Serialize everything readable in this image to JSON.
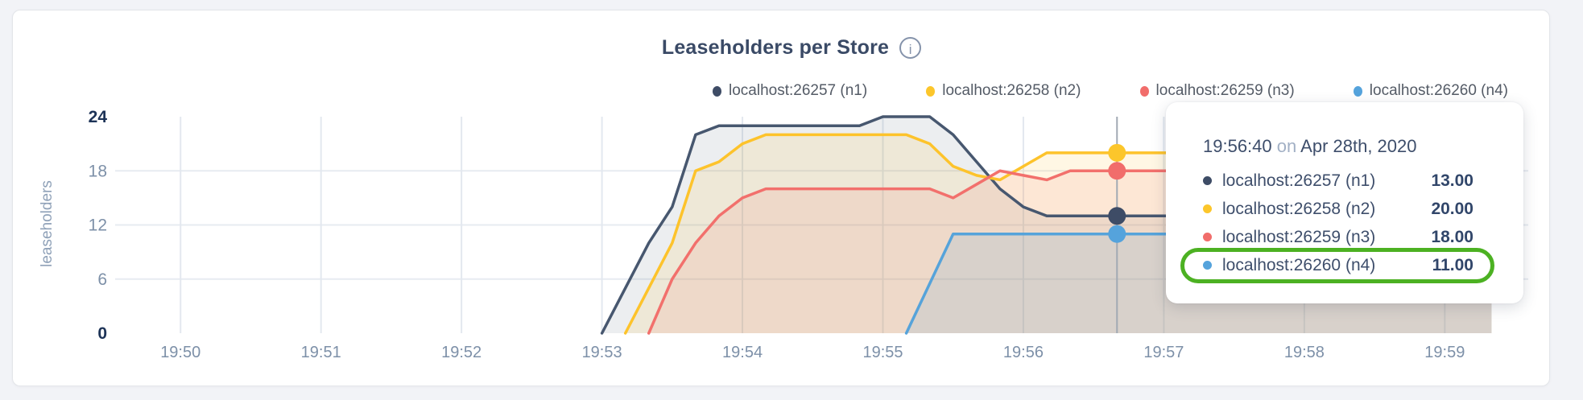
{
  "chart_data": {
    "type": "area",
    "title": "Leaseholders per Store",
    "info_icon": "i",
    "ylabel": "leaseholders",
    "xlabel": "",
    "grid": true,
    "legend_position": "top-right",
    "ylim": [
      0,
      24
    ],
    "y_ticks": [
      0,
      6,
      12,
      18,
      24
    ],
    "y_bold_ticks": [
      0,
      24
    ],
    "x_tick_labels": [
      "19:50",
      "19:51",
      "19:52",
      "19:53",
      "19:54",
      "19:55",
      "19:56",
      "19:57",
      "19:58",
      "19:59"
    ],
    "x_tick_seconds": [
      0,
      60,
      120,
      180,
      240,
      300,
      360,
      420,
      480,
      540
    ],
    "x_range_seconds": [
      -30,
      576
    ],
    "time_unit": "seconds after 19:50:00 on Apr 28th, 2020",
    "series": [
      {
        "name": "localhost:26257 (n1)",
        "color": "#47576F",
        "dot_color": "#3E4C66",
        "fill_opacity": 0.1,
        "points_s_v": [
          [
            180,
            0
          ],
          [
            190,
            5
          ],
          [
            200,
            10
          ],
          [
            210,
            14
          ],
          [
            220,
            22
          ],
          [
            230,
            23
          ],
          [
            290,
            23
          ],
          [
            300,
            24
          ],
          [
            320,
            24
          ],
          [
            330,
            22
          ],
          [
            340,
            19
          ],
          [
            350,
            16
          ],
          [
            360,
            14
          ],
          [
            370,
            13
          ],
          [
            560,
            13
          ]
        ]
      },
      {
        "name": "localhost:26258 (n2)",
        "color": "#FDC32B",
        "dot_color": "#FCC62B",
        "fill_opacity": 0.13,
        "points_s_v": [
          [
            190,
            0
          ],
          [
            200,
            5
          ],
          [
            210,
            10
          ],
          [
            220,
            18
          ],
          [
            230,
            19
          ],
          [
            240,
            21
          ],
          [
            250,
            22
          ],
          [
            310,
            22
          ],
          [
            320,
            21
          ],
          [
            330,
            18.5
          ],
          [
            340,
            17.5
          ],
          [
            350,
            17
          ],
          [
            360,
            18.5
          ],
          [
            370,
            20
          ],
          [
            560,
            20
          ]
        ]
      },
      {
        "name": "localhost:26259 (n3)",
        "color": "#F2706C",
        "dot_color": "#F16D6B",
        "fill_opacity": 0.12,
        "points_s_v": [
          [
            200,
            0
          ],
          [
            210,
            6
          ],
          [
            220,
            10
          ],
          [
            230,
            13
          ],
          [
            240,
            15
          ],
          [
            250,
            16
          ],
          [
            320,
            16
          ],
          [
            330,
            15
          ],
          [
            340,
            16.5
          ],
          [
            350,
            18
          ],
          [
            360,
            17.5
          ],
          [
            370,
            17
          ],
          [
            380,
            18
          ],
          [
            560,
            18
          ]
        ]
      },
      {
        "name": "localhost:26260 (n4)",
        "color": "#56A3DA",
        "dot_color": "#55A3DC",
        "fill_opacity": 0.14,
        "points_s_v": [
          [
            310,
            0
          ],
          [
            320,
            5.5
          ],
          [
            330,
            11
          ],
          [
            560,
            11
          ]
        ]
      }
    ],
    "hover": {
      "time_seconds": 400,
      "time_label": "19:56:40",
      "values": [
        13,
        20,
        18,
        11
      ]
    }
  },
  "legend": {
    "items": [
      {
        "label": "localhost:26257 (n1)",
        "color": "#3E4C66"
      },
      {
        "label": "localhost:26258 (n2)",
        "color": "#FCC62B"
      },
      {
        "label": "localhost:26259 (n3)",
        "color": "#F16D6B"
      },
      {
        "label": "localhost:26260 (n4)",
        "color": "#55A3DC"
      }
    ]
  },
  "tooltip": {
    "time": "19:56:40",
    "conj": "on",
    "date": "Apr 28th, 2020",
    "rows": [
      {
        "label": "localhost:26257 (n1)",
        "value": "13.00",
        "color": "#3E4C66"
      },
      {
        "label": "localhost:26258 (n2)",
        "value": "20.00",
        "color": "#FCC62B"
      },
      {
        "label": "localhost:26259 (n3)",
        "value": "18.00",
        "color": "#F16D6B"
      },
      {
        "label": "localhost:26260 (n4)",
        "value": "11.00",
        "color": "#55A3DC"
      }
    ],
    "highlighted_row_index": 3,
    "highlight_color": "#4CB122"
  },
  "colors": {
    "page_background": "#F2F3F7",
    "card_background": "#FFFFFF",
    "card_border": "#E3E5E9",
    "h_gridline": "#E7EBF1",
    "v_gridline": "#E3E8EF",
    "crosshair": "#A2AAB4",
    "tick_label": "#7D90A8",
    "bold_tick_label": "#1D3357",
    "title_text": "#3A4A66",
    "highlight_green": "#4CB122"
  }
}
